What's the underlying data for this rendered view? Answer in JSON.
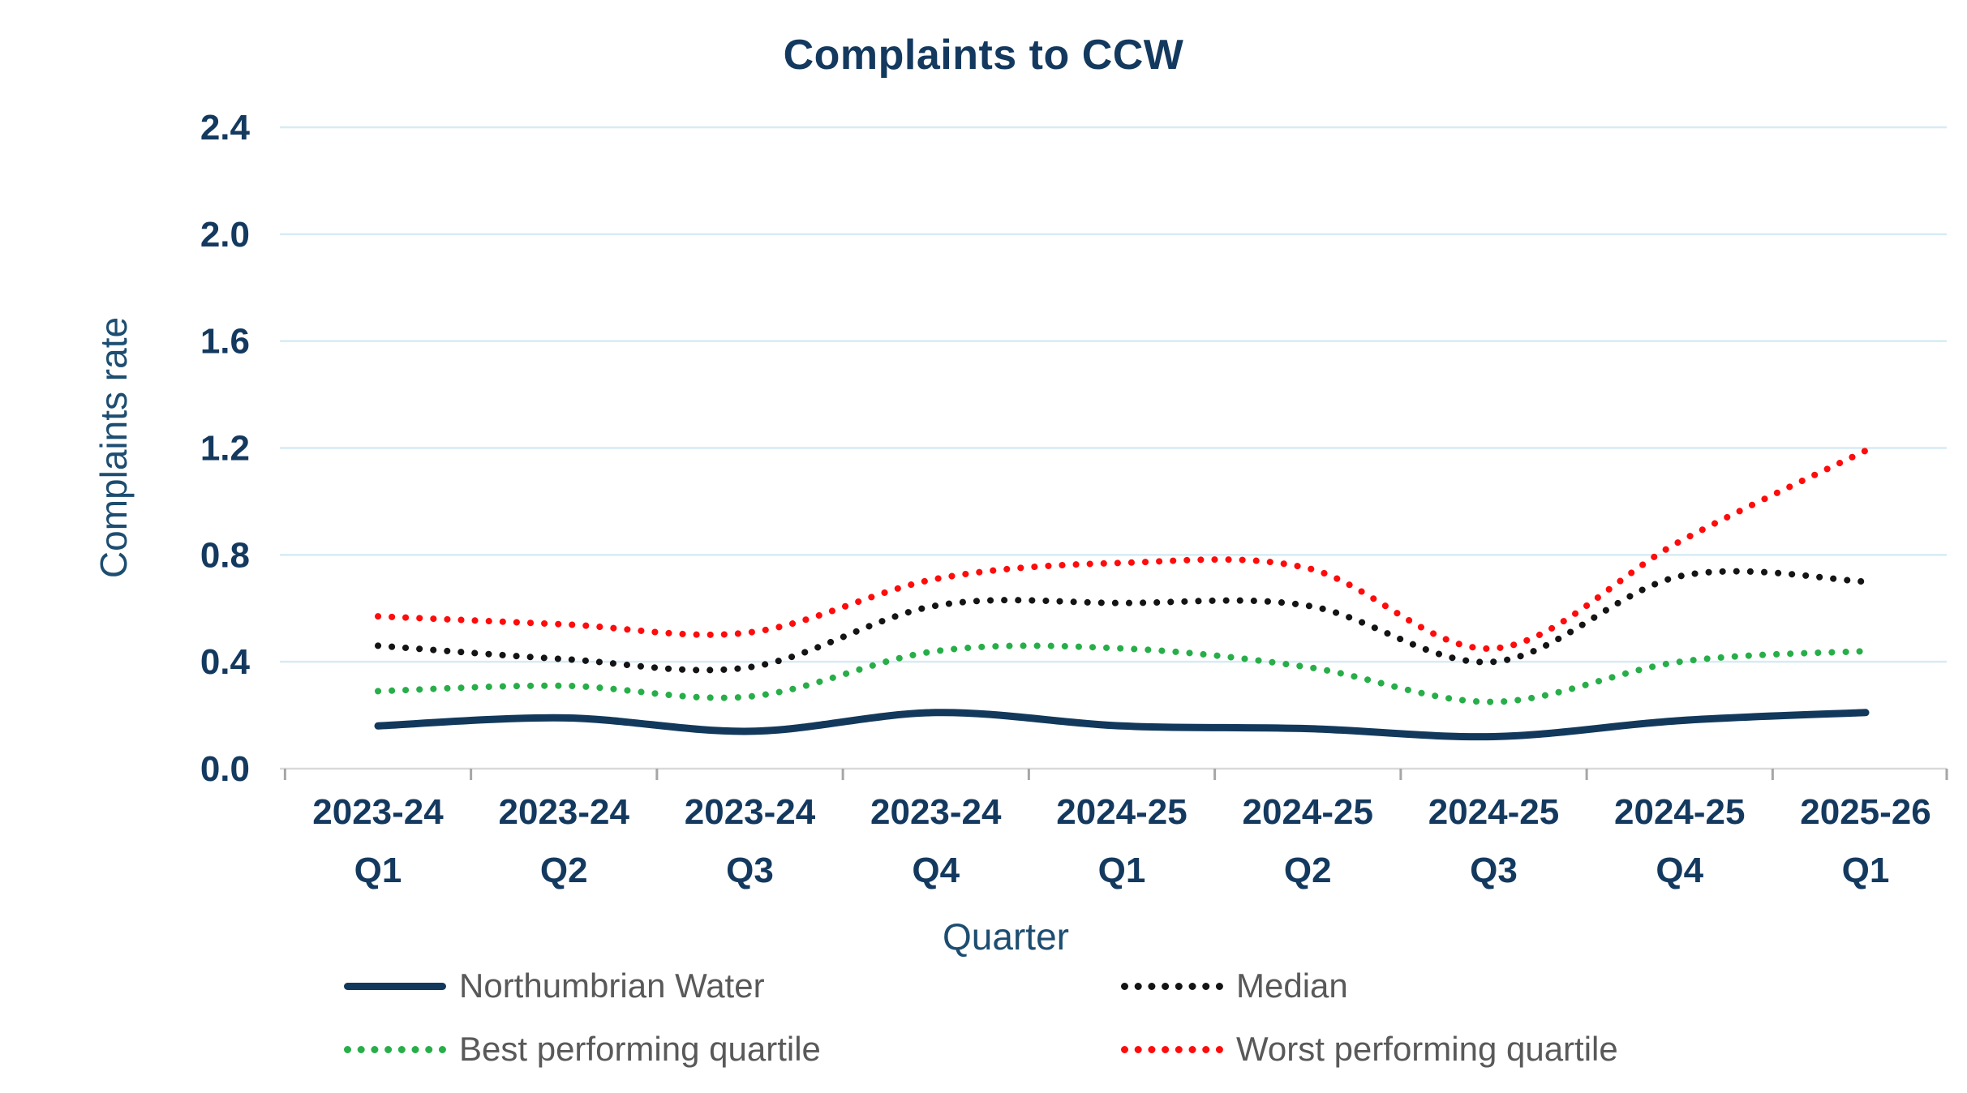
{
  "chart_data": {
    "type": "line",
    "title": "Complaints to CCW",
    "xlabel": "Quarter",
    "ylabel": "Complaints rate",
    "ylim": [
      0,
      2.4
    ],
    "y_tick_labels": [
      "0.0",
      "0.4",
      "0.8",
      "1.2",
      "1.6",
      "2.0",
      "2.4"
    ],
    "y_ticks": [
      0,
      0.4,
      0.8,
      1.2,
      1.6,
      2.0,
      2.4
    ],
    "grid": "horizontal",
    "legend_position": "bottom",
    "categories": [
      {
        "line1": "2023-24",
        "line2": "Q1"
      },
      {
        "line1": "2023-24",
        "line2": "Q2"
      },
      {
        "line1": "2023-24",
        "line2": "Q3"
      },
      {
        "line1": "2023-24",
        "line2": "Q4"
      },
      {
        "line1": "2024-25",
        "line2": "Q1"
      },
      {
        "line1": "2024-25",
        "line2": "Q2"
      },
      {
        "line1": "2024-25",
        "line2": "Q3"
      },
      {
        "line1": "2024-25",
        "line2": "Q4"
      },
      {
        "line1": "2025-26",
        "line2": "Q1"
      }
    ],
    "series": [
      {
        "name": "Northumbrian Water",
        "style": "solid",
        "color": "#12395b",
        "values": [
          0.16,
          0.19,
          0.14,
          0.21,
          0.16,
          0.15,
          0.12,
          0.18,
          0.21
        ]
      },
      {
        "name": "Median",
        "style": "dotted",
        "color": "#141414",
        "values": [
          0.46,
          0.41,
          0.38,
          0.61,
          0.62,
          0.61,
          0.4,
          0.72,
          0.7
        ]
      },
      {
        "name": "Best performing quartile",
        "style": "dotted",
        "color": "#27ae49",
        "values": [
          0.29,
          0.31,
          0.27,
          0.44,
          0.45,
          0.38,
          0.25,
          0.4,
          0.44
        ]
      },
      {
        "name": "Worst performing quartile",
        "style": "dotted",
        "color": "#ff0b0b",
        "values": [
          0.57,
          0.54,
          0.51,
          0.71,
          0.77,
          0.75,
          0.45,
          0.85,
          1.19
        ]
      }
    ],
    "colors": {
      "axis_text": "#14395f",
      "axis_title": "#1d4d70",
      "gridline": "#d6ecf5",
      "baseline": "#d9d9d9",
      "tick_mark": "#a6a6a6",
      "legend_text": "#595959"
    }
  }
}
